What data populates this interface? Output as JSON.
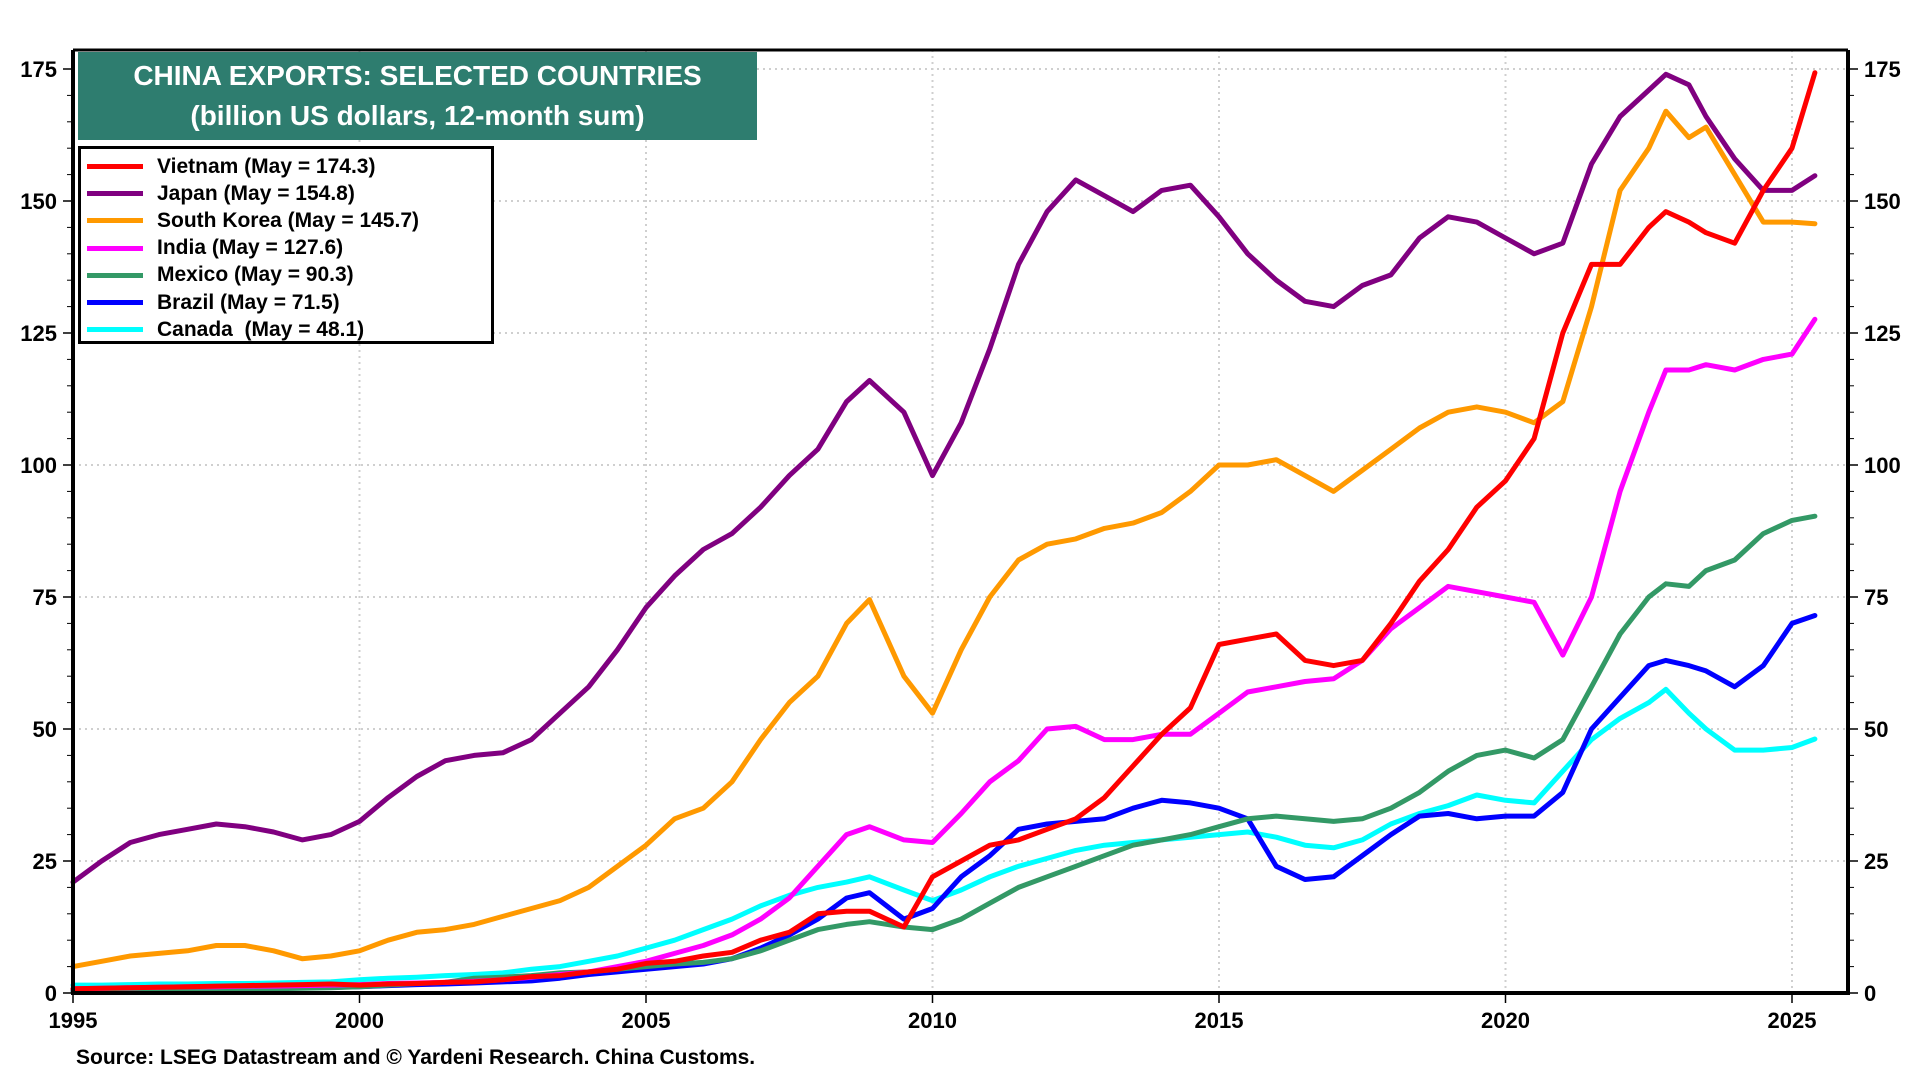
{
  "chart_data": {
    "type": "line",
    "title": "CHINA EXPORTS: SELECTED COUNTRIES",
    "subtitle": "(billion US dollars, 12-month sum)",
    "xlabel": "",
    "ylabel": "",
    "xlim": [
      1995,
      2026
    ],
    "ylim": [
      0,
      175
    ],
    "x_ticks": [
      "1995",
      "2000",
      "2005",
      "2010",
      "2015",
      "2020",
      "2025"
    ],
    "y_ticks_left": [
      "0",
      "25",
      "50",
      "75",
      "100",
      "125",
      "150",
      "175"
    ],
    "y_ticks_right": [
      "0",
      "25",
      "50",
      "75",
      "100",
      "125",
      "150",
      "175"
    ],
    "grid": true,
    "legend_position": "top-left",
    "source": "Source: LSEG Datastream and © Yardeni Research. China Customs.",
    "x": [
      1995.0,
      1995.5,
      1996.0,
      1996.5,
      1997.0,
      1997.5,
      1998.0,
      1998.5,
      1999.0,
      1999.5,
      2000.0,
      2000.5,
      2001.0,
      2001.5,
      2002.0,
      2002.5,
      2003.0,
      2003.5,
      2004.0,
      2004.5,
      2005.0,
      2005.5,
      2006.0,
      2006.5,
      2007.0,
      2007.5,
      2008.0,
      2008.5,
      2008.9,
      2009.5,
      2010.0,
      2010.5,
      2011.0,
      2011.5,
      2012.0,
      2012.5,
      2013.0,
      2013.5,
      2014.0,
      2014.5,
      2015.0,
      2015.5,
      2016.0,
      2016.5,
      2017.0,
      2017.5,
      2018.0,
      2018.5,
      2019.0,
      2019.5,
      2020.0,
      2020.5,
      2021.0,
      2021.5,
      2022.0,
      2022.5,
      2022.8,
      2023.2,
      2023.5,
      2024.0,
      2024.5,
      2025.0,
      2025.4
    ],
    "series": [
      {
        "name": "Vietnam",
        "legend": "Vietnam (May = 174.3)",
        "color": "#ff0000",
        "values": [
          0.8,
          0.9,
          1.0,
          1.1,
          1.2,
          1.3,
          1.4,
          1.5,
          1.6,
          1.7,
          1.5,
          1.7,
          1.8,
          2.0,
          2.1,
          2.5,
          3.1,
          3.3,
          4.0,
          4.5,
          5.6,
          6.0,
          7.0,
          7.7,
          10.0,
          11.5,
          15.0,
          15.5,
          15.5,
          12.5,
          22.0,
          25.0,
          28.0,
          29.0,
          31.0,
          33.0,
          37.0,
          43.0,
          49.0,
          54.0,
          66.0,
          67.0,
          68.0,
          63.0,
          62.0,
          63.0,
          70.0,
          78.0,
          84.0,
          92.0,
          97.0,
          105.0,
          125.0,
          138.0,
          138.0,
          145.0,
          148.0,
          146.0,
          144.0,
          142.0,
          152.0,
          160.0,
          174.3
        ]
      },
      {
        "name": "Japan",
        "legend": "Japan (May = 154.8)",
        "color": "#800080",
        "values": [
          21.0,
          25.0,
          28.5,
          30.0,
          31.0,
          32.0,
          31.5,
          30.5,
          29.0,
          30.0,
          32.5,
          37.0,
          41.0,
          44.0,
          45.0,
          45.5,
          48.0,
          53.0,
          58.0,
          65.0,
          73.0,
          79.0,
          84.0,
          87.0,
          92.0,
          98.0,
          103.0,
          112.0,
          116.0,
          110.0,
          98.0,
          108.0,
          122.0,
          138.0,
          148.0,
          154.0,
          151.0,
          148.0,
          152.0,
          153.0,
          147.0,
          140.0,
          135.0,
          131.0,
          130.0,
          134.0,
          136.0,
          143.0,
          147.0,
          146.0,
          143.0,
          140.0,
          142.0,
          157.0,
          166.0,
          171.0,
          174.0,
          172.0,
          166.0,
          158.0,
          152.0,
          152.0,
          154.8
        ]
      },
      {
        "name": "South Korea",
        "legend": "South Korea (May = 145.7)",
        "color": "#ff9900",
        "values": [
          5.0,
          6.0,
          7.0,
          7.5,
          8.0,
          9.0,
          9.0,
          8.0,
          6.5,
          7.0,
          8.0,
          10.0,
          11.5,
          12.0,
          13.0,
          14.5,
          16.0,
          17.5,
          20.0,
          24.0,
          28.0,
          33.0,
          35.0,
          40.0,
          48.0,
          55.0,
          60.0,
          70.0,
          74.5,
          60.0,
          53.0,
          65.0,
          75.0,
          82.0,
          85.0,
          86.0,
          88.0,
          89.0,
          91.0,
          95.0,
          100.0,
          100.0,
          101.0,
          98.0,
          95.0,
          99.0,
          103.0,
          107.0,
          110.0,
          111.0,
          110.0,
          108.0,
          112.0,
          130.0,
          152.0,
          160.0,
          167.0,
          162.0,
          164.0,
          155.0,
          146.0,
          146.0,
          145.7
        ]
      },
      {
        "name": "India",
        "legend": "India (May = 127.6)",
        "color": "#ff00ff",
        "values": [
          0.8,
          0.9,
          1.0,
          1.1,
          1.2,
          1.2,
          1.3,
          1.3,
          1.4,
          1.5,
          1.6,
          1.8,
          1.9,
          2.0,
          2.2,
          2.5,
          3.0,
          3.5,
          4.0,
          5.0,
          6.0,
          7.5,
          9.0,
          11.0,
          14.0,
          18.0,
          24.0,
          30.0,
          31.5,
          29.0,
          28.5,
          34.0,
          40.0,
          44.0,
          50.0,
          50.5,
          48.0,
          48.0,
          49.0,
          49.0,
          53.0,
          57.0,
          58.0,
          59.0,
          59.5,
          63.0,
          69.0,
          73.0,
          77.0,
          76.0,
          75.0,
          74.0,
          64.0,
          75.0,
          95.0,
          110.0,
          118.0,
          118.0,
          119.0,
          118.0,
          120.0,
          121.0,
          127.6
        ]
      },
      {
        "name": "Mexico",
        "legend": "Mexico (May = 90.3)",
        "color": "#339966",
        "values": [
          0.3,
          0.3,
          0.4,
          0.4,
          0.5,
          0.6,
          0.7,
          0.8,
          0.9,
          1.0,
          1.2,
          1.5,
          1.8,
          2.0,
          2.8,
          3.0,
          3.3,
          3.8,
          4.0,
          4.5,
          5.0,
          5.5,
          5.8,
          6.5,
          8.0,
          10.0,
          12.0,
          13.0,
          13.5,
          12.5,
          12.0,
          14.0,
          17.0,
          20.0,
          22.0,
          24.0,
          26.0,
          28.0,
          29.0,
          30.0,
          31.5,
          33.0,
          33.5,
          33.0,
          32.5,
          33.0,
          35.0,
          38.0,
          42.0,
          45.0,
          46.0,
          44.5,
          48.0,
          58.0,
          68.0,
          75.0,
          77.5,
          77.0,
          80.0,
          82.0,
          87.0,
          89.5,
          90.3
        ]
      },
      {
        "name": "Brazil",
        "legend": "Brazil (May = 71.5)",
        "color": "#0000ff",
        "values": [
          0.4,
          0.5,
          0.6,
          0.7,
          0.8,
          0.9,
          1.0,
          1.0,
          1.0,
          1.1,
          1.2,
          1.4,
          1.6,
          1.7,
          1.9,
          2.1,
          2.3,
          2.8,
          3.5,
          4.0,
          4.5,
          5.0,
          5.5,
          6.5,
          8.5,
          11.0,
          14.0,
          18.0,
          19.0,
          14.0,
          16.0,
          22.0,
          26.0,
          31.0,
          32.0,
          32.5,
          33.0,
          35.0,
          36.5,
          36.0,
          35.0,
          33.0,
          24.0,
          21.5,
          22.0,
          26.0,
          30.0,
          33.5,
          34.0,
          33.0,
          33.5,
          33.5,
          38.0,
          50.0,
          56.0,
          62.0,
          63.0,
          62.0,
          61.0,
          58.0,
          62.0,
          70.0,
          71.5
        ]
      },
      {
        "name": "Canada",
        "legend": "Canada  (May = 48.1)",
        "color": "#00ffff",
        "values": [
          1.5,
          1.5,
          1.6,
          1.7,
          1.7,
          1.8,
          1.8,
          1.9,
          2.0,
          2.1,
          2.5,
          2.8,
          3.0,
          3.3,
          3.5,
          3.8,
          4.5,
          5.0,
          6.0,
          7.0,
          8.5,
          10.0,
          12.0,
          14.0,
          16.5,
          18.5,
          20.0,
          21.0,
          22.0,
          19.5,
          17.5,
          19.5,
          22.0,
          24.0,
          25.5,
          27.0,
          28.0,
          28.5,
          29.0,
          29.5,
          30.0,
          30.5,
          29.5,
          28.0,
          27.5,
          29.0,
          32.0,
          34.0,
          35.5,
          37.5,
          36.5,
          36.0,
          42.0,
          48.0,
          52.0,
          55.0,
          57.5,
          53.0,
          50.0,
          46.0,
          46.0,
          46.5,
          48.1
        ]
      }
    ]
  }
}
